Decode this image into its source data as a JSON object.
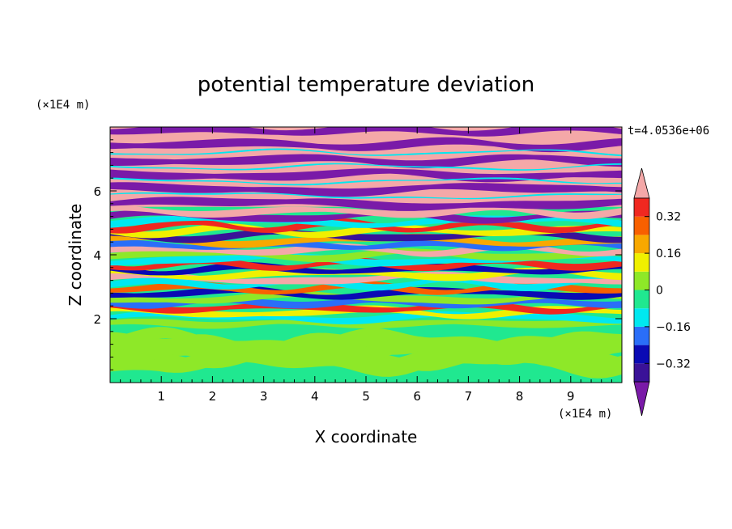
{
  "chart_data": {
    "type": "heatmap",
    "title": "potential temperature deviation",
    "xlabel": "X coordinate",
    "ylabel": "Z coordinate",
    "x_unit": "(×1E4 m)",
    "y_unit": "(×1E4 m)",
    "time_label": "t=4.0536e+06",
    "xlim": [
      0,
      10
    ],
    "ylim": [
      0,
      8
    ],
    "x_ticks": [
      "1",
      "2",
      "3",
      "4",
      "5",
      "6",
      "7",
      "8",
      "9"
    ],
    "y_ticks": [
      "2",
      "4",
      "6"
    ],
    "colorbar": {
      "levels": [
        -0.4,
        -0.32,
        -0.24,
        -0.16,
        -0.08,
        0,
        0.08,
        0.16,
        0.24,
        0.32,
        0.4
      ],
      "tick_labels": [
        "0.32",
        "0.16",
        "0",
        "−0.16",
        "−0.32"
      ],
      "colors": [
        "#7a1aa8",
        "#3a1298",
        "#0a0ab4",
        "#2a6ef8",
        "#00e8f0",
        "#20e890",
        "#8ee828",
        "#f0f000",
        "#f8a800",
        "#f86000",
        "#f02820",
        "#f4a8a8"
      ],
      "extend": "both"
    },
    "regions": [
      {
        "z_range": [
          0,
          2.0
        ],
        "description": "mostly neutral field, values near 0 to 0.08",
        "dominant": [
          "#20e890",
          "#8ee828"
        ]
      },
      {
        "z_range": [
          2.0,
          5.5
        ],
        "description": "turbulent mixing layer with thin alternating positive and negative bands",
        "dominant": [
          "#20e890",
          "#00e8f0",
          "#f0f000",
          "#f02820",
          "#0a0ab4"
        ]
      },
      {
        "z_range": [
          5.5,
          8.0
        ],
        "description": "strong horizontal layering alternating above 0.4 and below -0.4",
        "dominant": [
          "#f4a8a8",
          "#7a1aa8"
        ]
      }
    ]
  }
}
